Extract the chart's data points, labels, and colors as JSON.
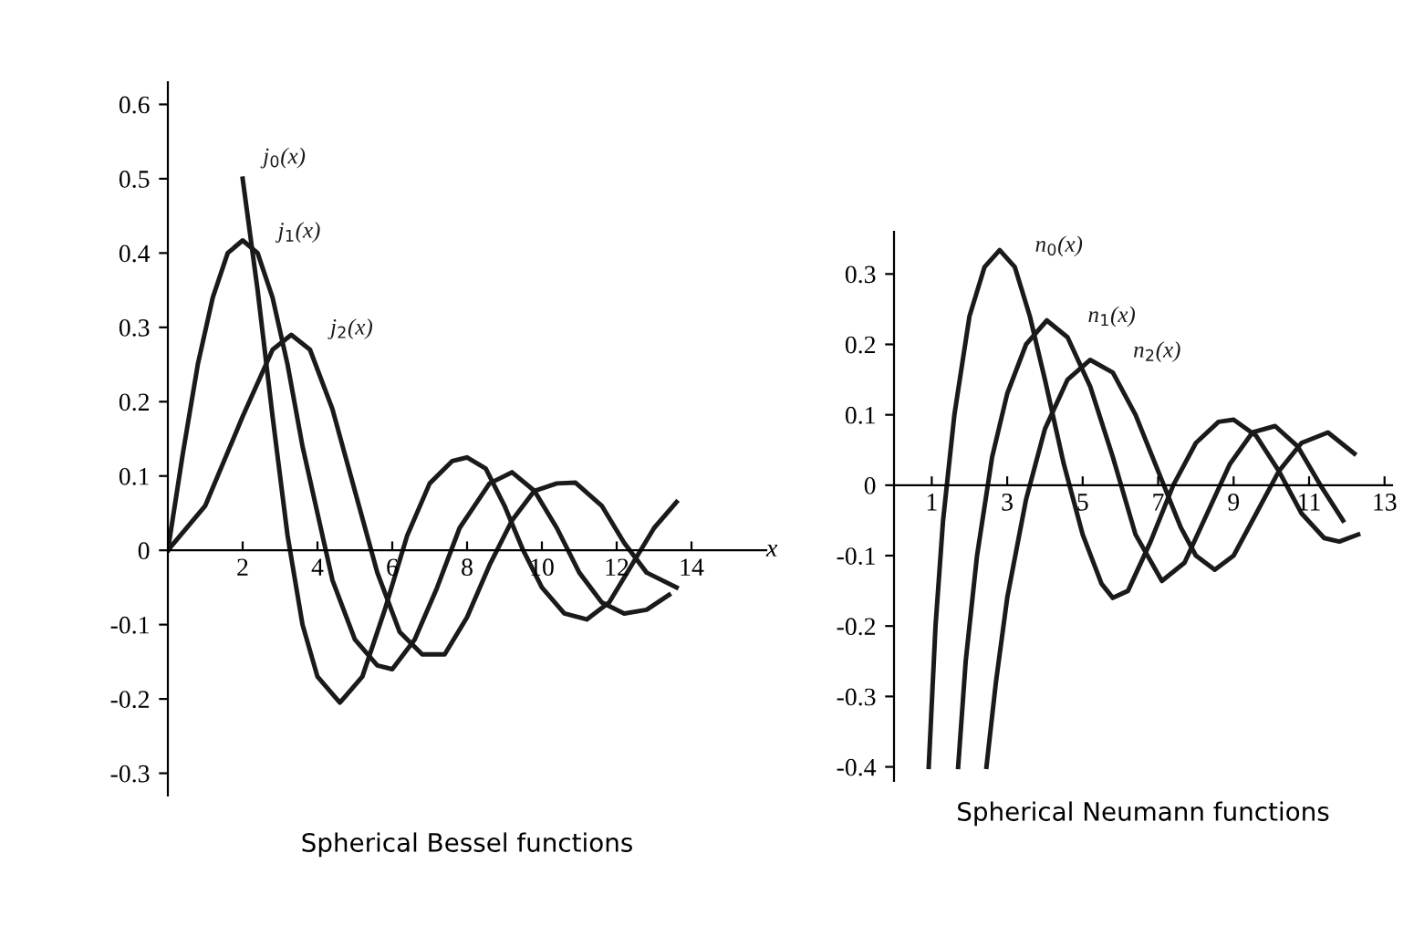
{
  "chart_data": [
    {
      "type": "line",
      "title": "Spherical Bessel functions",
      "xlabel": "x",
      "xlim": [
        0,
        16
      ],
      "ylim": [
        -0.33,
        0.63
      ],
      "xticks": [
        2,
        4,
        6,
        8,
        10,
        12,
        14
      ],
      "yticks": [
        -0.3,
        -0.2,
        -0.1,
        0,
        0.1,
        0.2,
        0.3,
        0.4,
        0.5,
        0.6
      ],
      "grid": false,
      "legend": false,
      "marker": "none",
      "line_style": "solid",
      "series": [
        {
          "name": "j$_{0}$(x)",
          "color": "#1a1a1a",
          "x": [
            2.0,
            2.4,
            2.8,
            3.2,
            3.6,
            4.0,
            4.6,
            5.2,
            5.8,
            6.4,
            7.0,
            7.6,
            8.0,
            8.5,
            9.0,
            9.5,
            10.0,
            10.6,
            11.2,
            11.8,
            12.4,
            13.0,
            13.6
          ],
          "values": [
            0.5,
            0.35,
            0.18,
            0.02,
            -0.1,
            -0.17,
            -0.205,
            -0.17,
            -0.08,
            0.02,
            0.09,
            0.12,
            0.125,
            0.11,
            0.06,
            0.0,
            -0.05,
            -0.085,
            -0.093,
            -0.07,
            -0.02,
            0.03,
            0.065
          ]
        },
        {
          "name": "j$_{1}$(x)",
          "color": "#1a1a1a",
          "x": [
            0,
            0.4,
            0.8,
            1.2,
            1.6,
            2.0,
            2.4,
            2.8,
            3.2,
            3.6,
            4.0,
            4.4,
            5.0,
            5.6,
            6.0,
            6.6,
            7.2,
            7.8,
            8.6,
            9.2,
            9.8,
            10.4,
            11.0,
            11.6,
            12.2,
            12.8,
            13.4
          ],
          "values": [
            0,
            0.13,
            0.25,
            0.34,
            0.4,
            0.417,
            0.4,
            0.34,
            0.25,
            0.14,
            0.05,
            -0.04,
            -0.12,
            -0.155,
            -0.16,
            -0.12,
            -0.05,
            0.03,
            0.09,
            0.105,
            0.08,
            0.03,
            -0.03,
            -0.07,
            -0.085,
            -0.08,
            -0.06
          ]
        },
        {
          "name": "j$_{2}$(x)",
          "color": "#1a1a1a",
          "x": [
            0,
            1.0,
            2.0,
            2.8,
            3.3,
            3.8,
            4.4,
            5.0,
            5.6,
            6.2,
            6.8,
            7.4,
            8.0,
            8.6,
            9.2,
            9.8,
            10.4,
            10.9,
            11.6,
            12.2,
            12.8,
            13.6
          ],
          "values": [
            0,
            0.06,
            0.18,
            0.27,
            0.29,
            0.27,
            0.19,
            0.08,
            -0.03,
            -0.11,
            -0.14,
            -0.14,
            -0.09,
            -0.02,
            0.04,
            0.08,
            0.09,
            0.091,
            0.06,
            0.01,
            -0.03,
            -0.05
          ]
        }
      ]
    },
    {
      "type": "line",
      "title": "Spherical Neumann functions",
      "xlim": [
        0,
        13.2
      ],
      "ylim": [
        -0.42,
        0.36
      ],
      "xticks": [
        1,
        3,
        5,
        7,
        9,
        11,
        13
      ],
      "yticks": [
        -0.4,
        -0.3,
        -0.2,
        -0.1,
        0,
        0.1,
        0.2,
        0.3
      ],
      "grid": false,
      "legend": false,
      "marker": "none",
      "line_style": "solid",
      "series": [
        {
          "name": "n$_{0}$(x)",
          "color": "#1a1a1a",
          "x": [
            0.92,
            1.1,
            1.3,
            1.6,
            2.0,
            2.4,
            2.8,
            3.2,
            3.6,
            4.0,
            4.5,
            5.0,
            5.5,
            5.8,
            6.2,
            6.8,
            7.4,
            8.0,
            8.6,
            9.0,
            9.6,
            10.2,
            10.8,
            11.4,
            11.8,
            12.3
          ],
          "values": [
            -0.4,
            -0.2,
            -0.05,
            0.1,
            0.24,
            0.31,
            0.334,
            0.31,
            0.24,
            0.15,
            0.03,
            -0.07,
            -0.14,
            -0.16,
            -0.15,
            -0.08,
            0.0,
            0.06,
            0.09,
            0.093,
            0.07,
            0.02,
            -0.04,
            -0.075,
            -0.08,
            -0.07
          ]
        },
        {
          "name": "n$_{1}$(x)",
          "color": "#1a1a1a",
          "x": [
            1.7,
            1.9,
            2.2,
            2.6,
            3.0,
            3.5,
            4.05,
            4.6,
            5.2,
            5.8,
            6.4,
            7.1,
            7.7,
            8.3,
            8.9,
            9.5,
            10.1,
            10.7,
            11.3,
            11.9
          ],
          "values": [
            -0.4,
            -0.25,
            -0.1,
            0.04,
            0.13,
            0.2,
            0.234,
            0.21,
            0.14,
            0.04,
            -0.07,
            -0.136,
            -0.11,
            -0.04,
            0.03,
            0.075,
            0.084,
            0.055,
            0.0,
            -0.05
          ]
        },
        {
          "name": "n$_{2}$(x)",
          "color": "#1a1a1a",
          "x": [
            2.45,
            2.7,
            3.0,
            3.5,
            4.0,
            4.6,
            5.2,
            5.8,
            6.4,
            7.0,
            7.6,
            8.0,
            8.5,
            9.0,
            9.6,
            10.2,
            10.8,
            11.5,
            12.2
          ],
          "values": [
            -0.4,
            -0.28,
            -0.16,
            -0.02,
            0.08,
            0.15,
            0.178,
            0.16,
            0.1,
            0.02,
            -0.06,
            -0.1,
            -0.12,
            -0.1,
            -0.04,
            0.02,
            0.06,
            0.075,
            0.045
          ]
        }
      ]
    }
  ]
}
